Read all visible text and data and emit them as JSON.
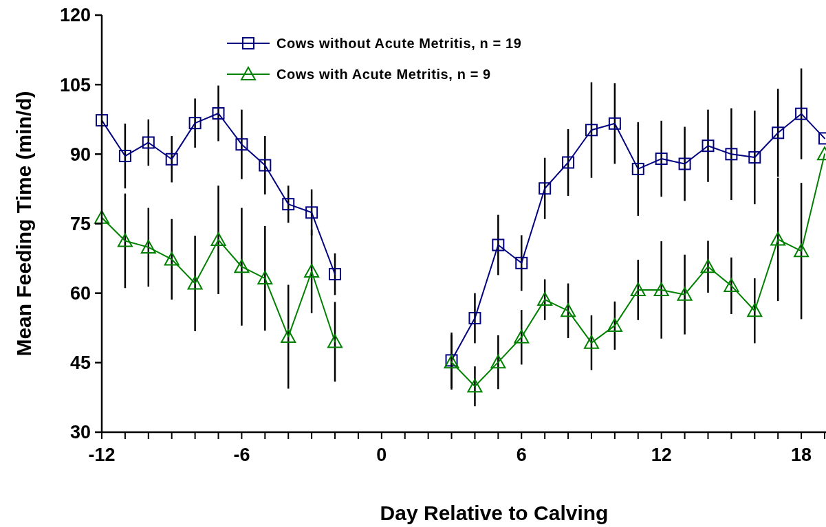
{
  "chart_data": {
    "type": "line",
    "xlabel": "Day Relative to Calving",
    "ylabel": "Mean Feeding Time (min/d)",
    "x": [
      -12,
      -11,
      -10,
      -9,
      -8,
      -7,
      -6,
      -5,
      -4,
      -3,
      -2,
      null,
      null,
      null,
      null,
      3,
      4,
      5,
      6,
      7,
      8,
      9,
      10,
      11,
      12,
      13,
      14,
      15,
      16,
      17,
      18,
      19
    ],
    "series": [
      {
        "name": "Cows without Acute Metritis, n = 19",
        "color": "#000080",
        "marker": "square",
        "values": [
          97.3,
          89.6,
          92.5,
          88.9,
          96.7,
          98.8,
          92.1,
          87.6,
          79.2,
          77.4,
          64.1,
          null,
          null,
          null,
          null,
          45.5,
          54.6,
          70.4,
          66.5,
          82.6,
          88.2,
          95.2,
          96.6,
          86.8,
          89.0,
          87.9,
          91.8,
          90.0,
          89.3,
          94.6,
          98.7,
          93.4
        ],
        "errors": [
          null,
          7,
          5,
          5,
          5.3,
          6,
          7.5,
          6.3,
          4,
          5,
          4.5,
          null,
          null,
          null,
          null,
          6,
          5.4,
          6.5,
          6,
          6.6,
          7.2,
          10.3,
          8.7,
          10.1,
          8.2,
          8,
          7.8,
          9.9,
          10.1,
          9.5,
          9.8,
          null
        ]
      },
      {
        "name": "Cows with Acute Metritis, n = 9",
        "color": "#008000",
        "marker": "triangle",
        "values": [
          76.3,
          71.3,
          69.9,
          67.3,
          62.1,
          71.5,
          65.7,
          63.2,
          50.6,
          64.7,
          49.5,
          null,
          null,
          null,
          null,
          45.1,
          39.9,
          45.1,
          50.5,
          58.6,
          56.2,
          49.3,
          53.0,
          60.7,
          60.7,
          59.7,
          65.7,
          61.6,
          56.2,
          71.6,
          69.1,
          90.0
        ],
        "errors": [
          null,
          10.2,
          8.5,
          8.7,
          10.3,
          11.7,
          12.7,
          11.3,
          11.2,
          9,
          8.6,
          null,
          null,
          null,
          null,
          5.9,
          4.3,
          5.8,
          5.9,
          4.4,
          5.9,
          5.9,
          5.2,
          6.5,
          10.5,
          8.6,
          5.6,
          6.1,
          7,
          13.3,
          14.7,
          null
        ]
      }
    ],
    "xlim": [
      -12,
      19
    ],
    "xticks": [
      -12,
      {
        "value": -11,
        "label": null
      },
      {
        "value": -10,
        "label": null
      },
      {
        "value": -9,
        "label": null
      },
      {
        "value": -8,
        "label": null
      },
      {
        "value": -7,
        "label": null
      },
      -6,
      {
        "value": -5,
        "label": null
      },
      {
        "value": -4,
        "label": null
      },
      {
        "value": -3,
        "label": null
      },
      {
        "value": -2,
        "label": null
      },
      {
        "value": -1,
        "label": null
      },
      0,
      {
        "value": 1,
        "label": null
      },
      {
        "value": 2,
        "label": null
      },
      {
        "value": 3,
        "label": null
      },
      {
        "value": 4,
        "label": null
      },
      {
        "value": 5,
        "label": null
      },
      6,
      {
        "value": 7,
        "label": null
      },
      {
        "value": 8,
        "label": null
      },
      {
        "value": 9,
        "label": null
      },
      {
        "value": 10,
        "label": null
      },
      {
        "value": 11,
        "label": null
      },
      12,
      {
        "value": 13,
        "label": null
      },
      {
        "value": 14,
        "label": null
      },
      {
        "value": 15,
        "label": null
      },
      {
        "value": 16,
        "label": null
      },
      {
        "value": 17,
        "label": null
      },
      18,
      {
        "value": 19,
        "label": null
      }
    ],
    "ylim": [
      30,
      120
    ],
    "yticks": [
      30,
      45,
      60,
      75,
      90,
      105,
      120
    ],
    "grid": false,
    "legend": "top",
    "line_style": "solid"
  }
}
